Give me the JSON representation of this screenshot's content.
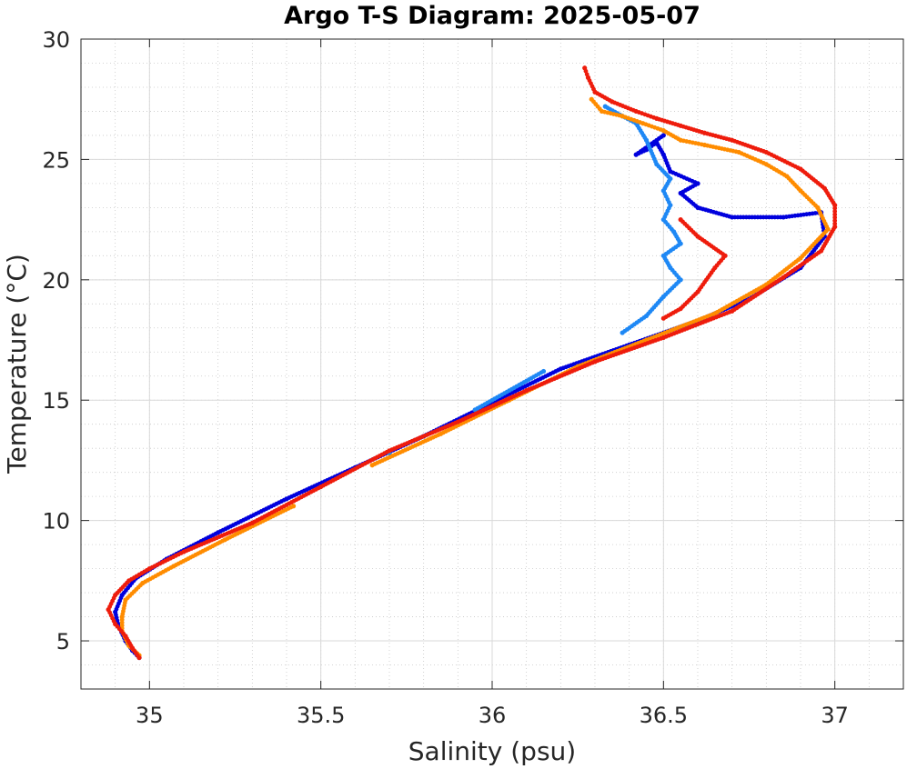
{
  "chart_data": {
    "type": "scatter",
    "title": "Argo T-S Diagram: 2025-05-07",
    "xlabel": "Salinity (psu)",
    "ylabel": "Temperature (°C)",
    "xlim": [
      34.8,
      37.2
    ],
    "ylim": [
      3,
      30
    ],
    "xticks": [
      35,
      35.5,
      36,
      36.5,
      37
    ],
    "xtick_labels": [
      "35",
      "35.5",
      "36",
      "36.5",
      "37"
    ],
    "yticks": [
      5,
      10,
      15,
      20,
      25,
      30
    ],
    "ytick_labels": [
      "5",
      "10",
      "15",
      "20",
      "25",
      "30"
    ],
    "grid": true,
    "minor_grid": true,
    "legend": "none",
    "series": [
      {
        "color": "#0000dd",
        "points": [
          [
            34.97,
            4.3
          ],
          [
            34.95,
            4.6
          ],
          [
            34.93,
            5.0
          ],
          [
            34.91,
            5.6
          ],
          [
            34.9,
            6.2
          ],
          [
            34.92,
            6.9
          ],
          [
            34.96,
            7.6
          ],
          [
            35.05,
            8.4
          ],
          [
            35.2,
            9.5
          ],
          [
            35.4,
            10.9
          ],
          [
            35.6,
            12.2
          ],
          [
            35.8,
            13.5
          ],
          [
            36.0,
            14.9
          ],
          [
            36.2,
            16.3
          ],
          [
            36.4,
            17.3
          ],
          [
            36.6,
            18.3
          ],
          [
            36.75,
            19.2
          ],
          [
            36.9,
            20.5
          ],
          [
            36.97,
            21.8
          ],
          [
            36.96,
            22.8
          ],
          [
            36.85,
            22.6
          ],
          [
            36.7,
            22.6
          ],
          [
            36.6,
            23.0
          ],
          [
            36.55,
            23.6
          ],
          [
            36.6,
            24.0
          ],
          [
            36.52,
            24.5
          ],
          [
            36.5,
            25.2
          ],
          [
            36.48,
            25.7
          ],
          [
            36.45,
            25.4
          ],
          [
            36.42,
            25.2
          ],
          [
            36.5,
            26.0
          ]
        ]
      },
      {
        "color": "#1e88f5",
        "points": [
          [
            35.7,
            12.8
          ],
          [
            35.95,
            14.6
          ],
          [
            36.15,
            16.2
          ],
          [
            36.38,
            17.8
          ],
          [
            36.45,
            18.5
          ],
          [
            36.5,
            19.3
          ],
          [
            36.55,
            20.0
          ],
          [
            36.52,
            20.5
          ],
          [
            36.5,
            21.0
          ],
          [
            36.55,
            21.5
          ],
          [
            36.53,
            22.0
          ],
          [
            36.5,
            22.5
          ],
          [
            36.52,
            23.1
          ],
          [
            36.5,
            23.7
          ],
          [
            36.52,
            24.2
          ],
          [
            36.48,
            24.8
          ],
          [
            36.45,
            25.8
          ],
          [
            36.42,
            26.5
          ],
          [
            36.38,
            26.8
          ],
          [
            36.33,
            27.2
          ]
        ]
      },
      {
        "color": "#ff8c00",
        "points": [
          [
            34.97,
            4.4
          ],
          [
            34.94,
            4.8
          ],
          [
            34.92,
            5.4
          ],
          [
            34.92,
            6.0
          ],
          [
            34.93,
            6.7
          ],
          [
            34.98,
            7.4
          ],
          [
            35.07,
            8.1
          ],
          [
            35.22,
            9.2
          ],
          [
            35.42,
            10.6
          ],
          [
            35.65,
            12.3
          ],
          [
            35.85,
            13.6
          ],
          [
            36.05,
            15.0
          ],
          [
            36.25,
            16.4
          ],
          [
            36.45,
            17.5
          ],
          [
            36.65,
            18.6
          ],
          [
            36.8,
            19.8
          ],
          [
            36.9,
            20.9
          ],
          [
            36.98,
            22.1
          ],
          [
            36.95,
            23.0
          ],
          [
            36.9,
            23.7
          ],
          [
            36.86,
            24.3
          ],
          [
            36.8,
            24.8
          ],
          [
            36.72,
            25.3
          ],
          [
            36.62,
            25.6
          ],
          [
            36.55,
            25.8
          ],
          [
            36.5,
            26.2
          ],
          [
            36.44,
            26.5
          ],
          [
            36.38,
            26.8
          ],
          [
            36.32,
            27.0
          ],
          [
            36.29,
            27.5
          ]
        ]
      },
      {
        "color": "#ee1c0c",
        "points": [
          [
            34.97,
            4.3
          ],
          [
            34.95,
            4.7
          ],
          [
            34.93,
            5.2
          ],
          [
            34.9,
            5.7
          ],
          [
            34.88,
            6.3
          ],
          [
            34.9,
            6.9
          ],
          [
            34.94,
            7.5
          ],
          [
            35.0,
            8.0
          ],
          [
            35.1,
            8.7
          ],
          [
            35.3,
            9.9
          ],
          [
            35.5,
            11.4
          ],
          [
            35.7,
            12.9
          ],
          [
            35.9,
            14.1
          ],
          [
            36.1,
            15.4
          ],
          [
            36.3,
            16.6
          ],
          [
            36.5,
            17.6
          ],
          [
            36.7,
            18.7
          ],
          [
            36.85,
            20.1
          ],
          [
            36.96,
            21.2
          ],
          [
            37.0,
            22.2
          ],
          [
            37.0,
            23.1
          ],
          [
            36.97,
            23.8
          ],
          [
            36.9,
            24.6
          ],
          [
            36.8,
            25.3
          ],
          [
            36.7,
            25.8
          ],
          [
            36.62,
            26.1
          ],
          [
            36.55,
            26.4
          ],
          [
            36.48,
            26.7
          ],
          [
            36.42,
            27.0
          ],
          [
            36.35,
            27.4
          ],
          [
            36.3,
            27.8
          ],
          [
            36.28,
            28.4
          ],
          [
            36.27,
            28.8
          ],
          [
            36.55,
            22.5
          ],
          [
            36.6,
            21.8
          ],
          [
            36.68,
            21.0
          ],
          [
            36.65,
            20.5
          ],
          [
            36.6,
            19.5
          ],
          [
            36.55,
            18.8
          ],
          [
            36.5,
            18.4
          ]
        ]
      }
    ]
  }
}
